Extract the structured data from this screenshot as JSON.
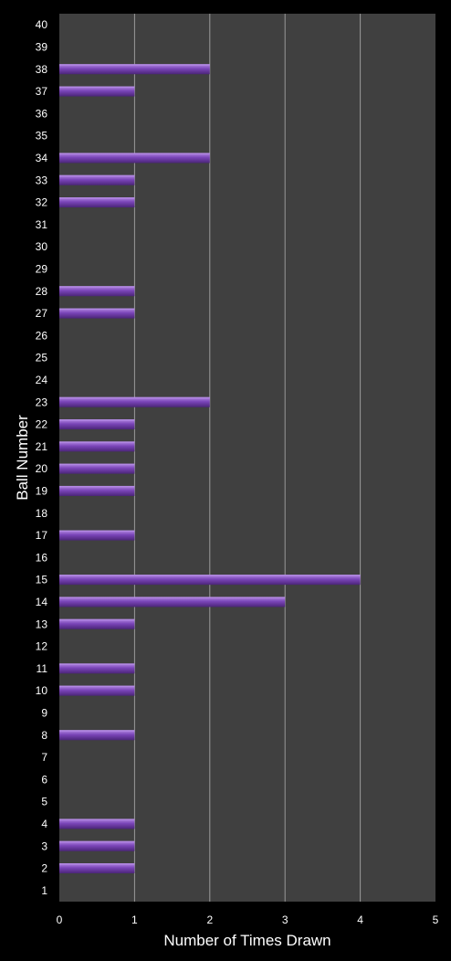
{
  "chart_data": {
    "type": "bar",
    "orientation": "horizontal",
    "title": "",
    "xlabel": "Number of Times Drawn",
    "ylabel": "Ball Number",
    "xlim": [
      0,
      5
    ],
    "xticks": [
      "0",
      "1",
      "2",
      "3",
      "4",
      "5"
    ],
    "grid": true,
    "legend": "none",
    "colors": {
      "background": "#000000",
      "plot_area": "#404040",
      "gridline": "#9a9a9a",
      "bar": "#7a45b8",
      "bar_highlight": "#b48ae3",
      "bar_shadow": "#4b2578",
      "text": "#ffffff"
    },
    "categories": [
      "1",
      "2",
      "3",
      "4",
      "5",
      "6",
      "7",
      "8",
      "9",
      "10",
      "11",
      "12",
      "13",
      "14",
      "15",
      "16",
      "17",
      "18",
      "19",
      "20",
      "21",
      "22",
      "23",
      "24",
      "25",
      "26",
      "27",
      "28",
      "29",
      "30",
      "31",
      "32",
      "33",
      "34",
      "35",
      "36",
      "37",
      "38",
      "39",
      "40"
    ],
    "values": [
      0,
      1,
      1,
      1,
      0,
      0,
      0,
      1,
      0,
      1,
      1,
      0,
      1,
      3,
      4,
      0,
      1,
      0,
      1,
      1,
      1,
      1,
      2,
      0,
      0,
      0,
      1,
      1,
      0,
      0,
      0,
      1,
      1,
      2,
      0,
      0,
      1,
      2,
      0,
      0
    ]
  }
}
